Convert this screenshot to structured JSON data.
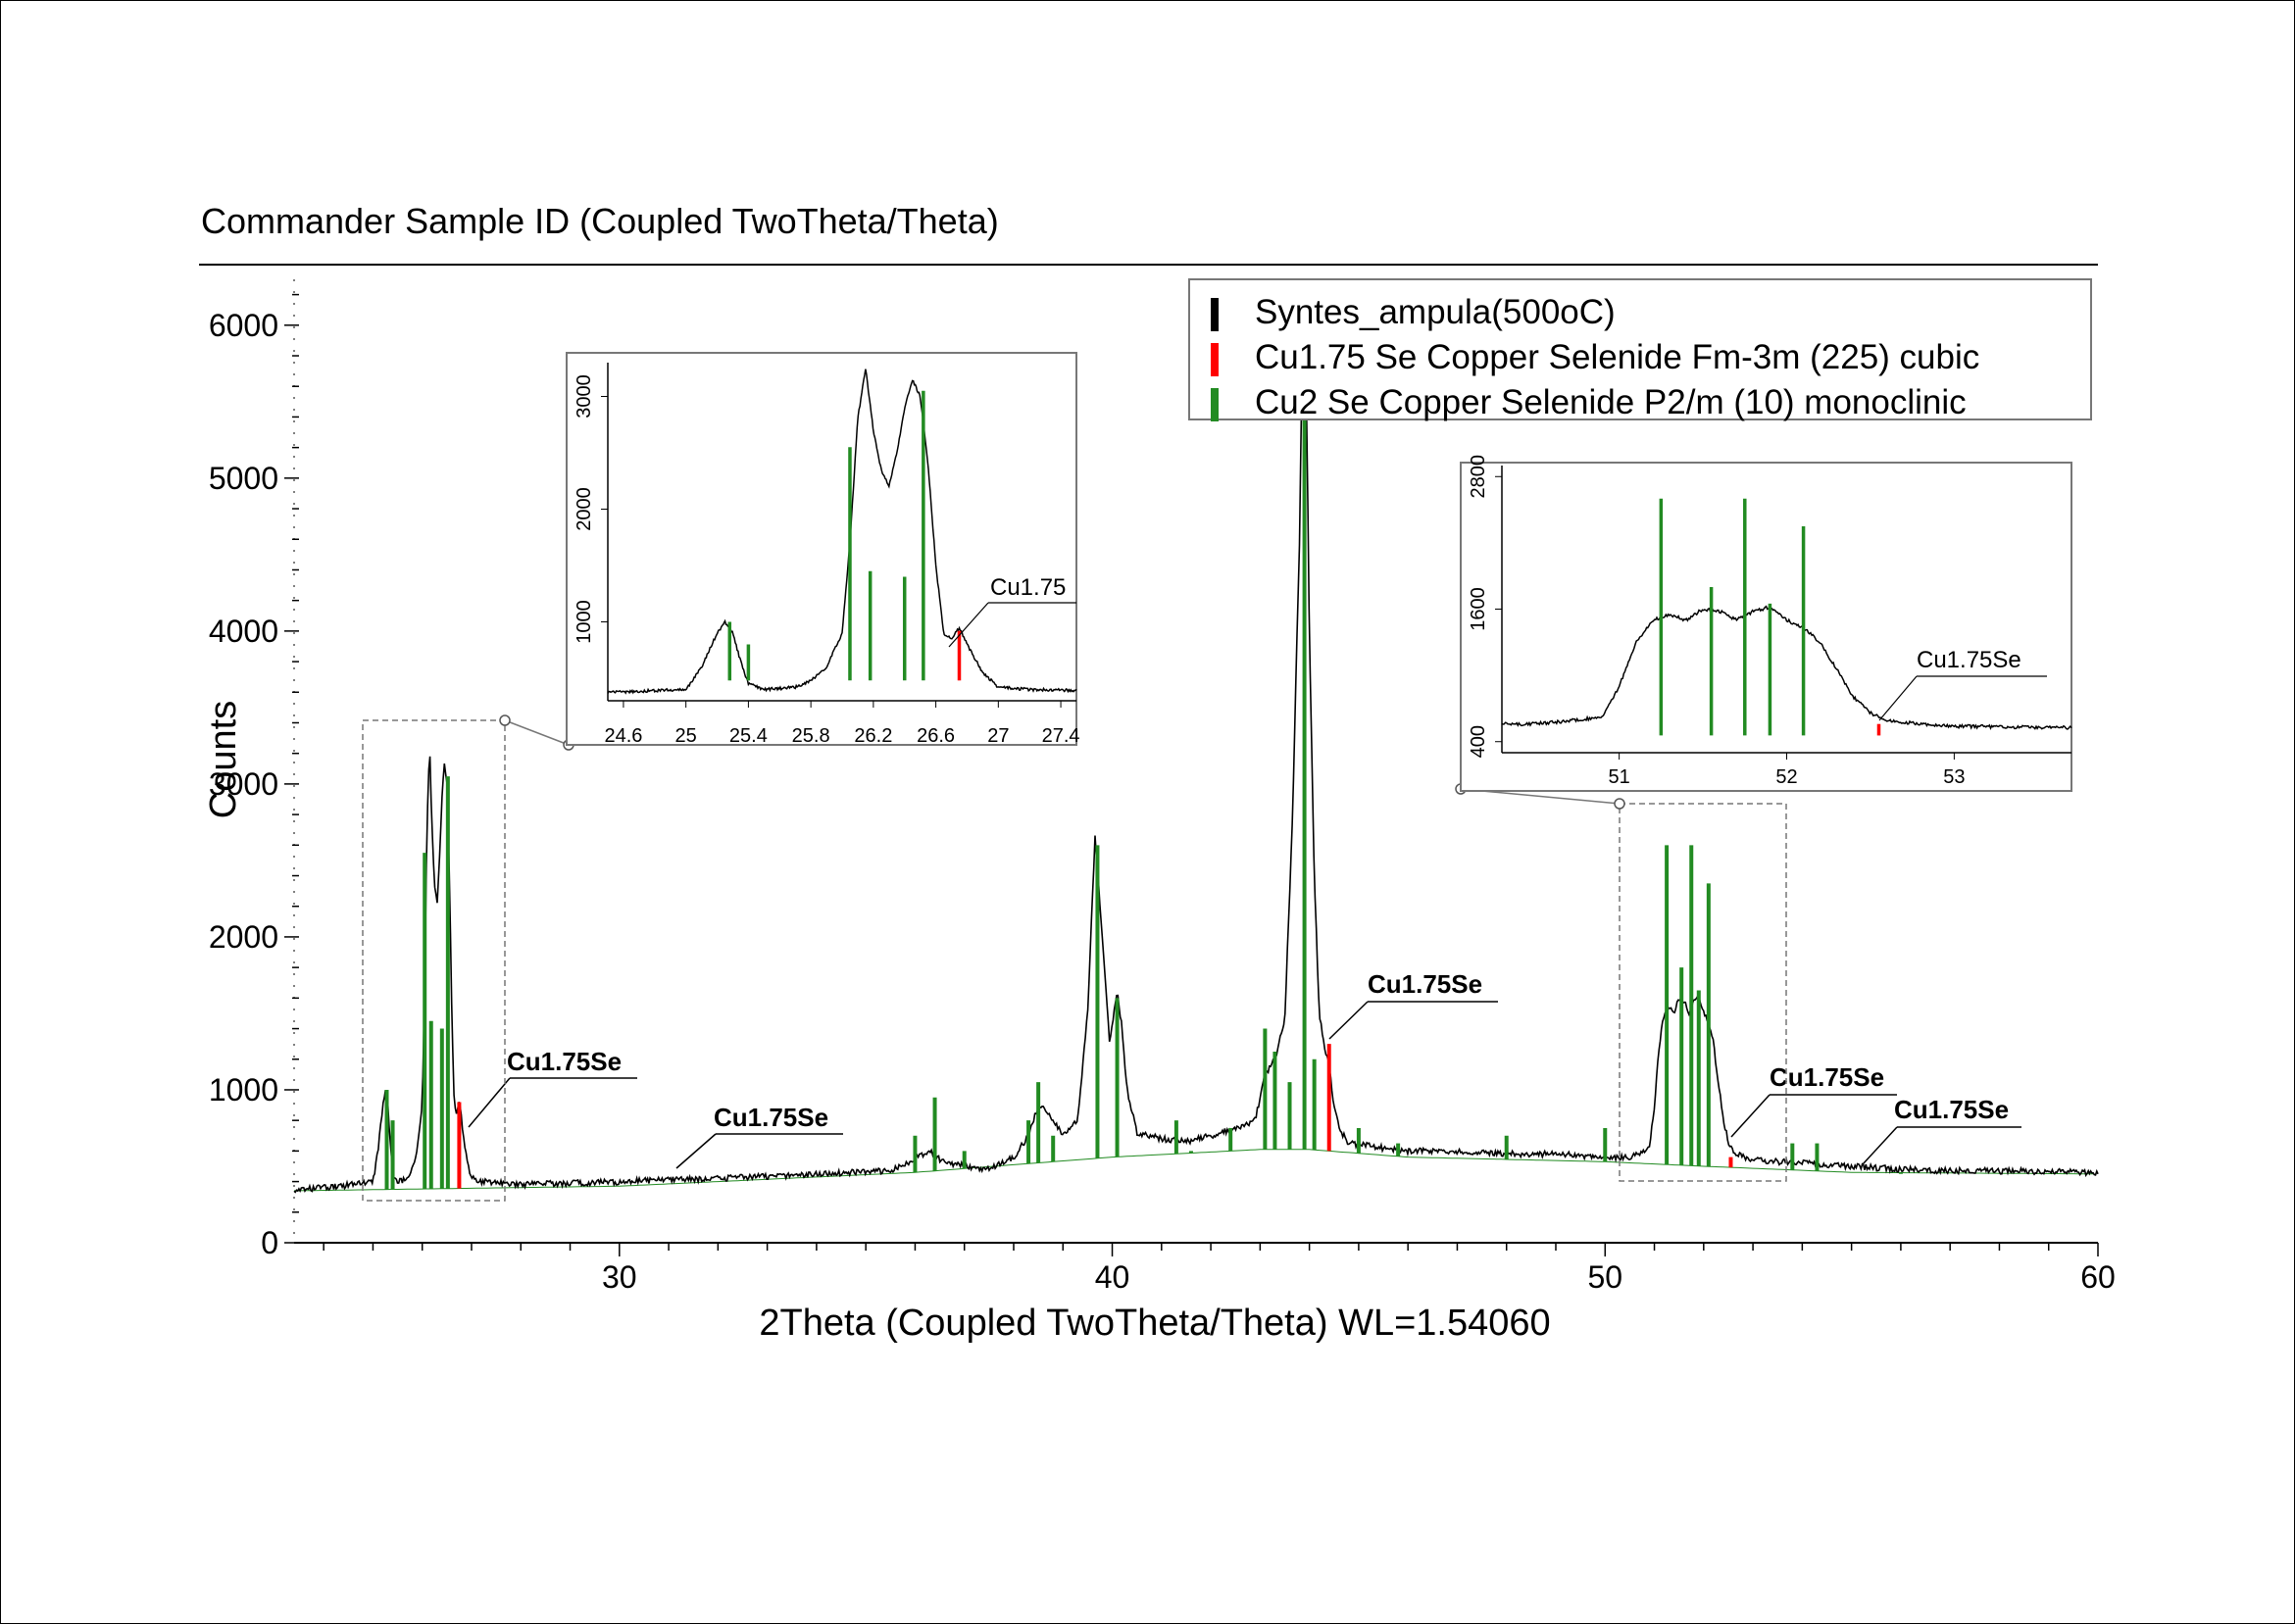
{
  "chart_data": {
    "type": "line",
    "title": "Commander Sample ID (Coupled TwoTheta/Theta)",
    "xlabel": "2Theta (Coupled TwoTheta/Theta) WL=1.54060",
    "ylabel": "Counts",
    "xlim": [
      23.4,
      60
    ],
    "ylim": [
      0,
      6300
    ],
    "x_ticks": [
      30,
      40,
      50,
      60
    ],
    "y_ticks": [
      0,
      1000,
      2000,
      3000,
      4000,
      5000,
      6000
    ],
    "grid": false,
    "legend_position": "top-right",
    "legend": [
      {
        "label": "Syntes_ampula(500oC)",
        "color": "#000000"
      },
      {
        "label": "Cu1.75 Se Copper Selenide Fm-3m (225) cubic",
        "color": "#ff0000"
      },
      {
        "label": "Cu2 Se Copper Selenide P2/m (10) monoclinic",
        "color": "#228b22"
      }
    ],
    "series": [
      {
        "name": "Syntes_ampula(500oC)",
        "color": "#000000",
        "x": [
          23.4,
          24.0,
          24.6,
          25.0,
          25.1,
          25.2,
          25.25,
          25.3,
          25.35,
          25.4,
          25.5,
          25.6,
          25.7,
          25.8,
          25.9,
          26.0,
          26.05,
          26.1,
          26.15,
          26.2,
          26.25,
          26.3,
          26.35,
          26.4,
          26.45,
          26.5,
          26.55,
          26.6,
          26.65,
          26.7,
          26.75,
          26.8,
          26.9,
          27.0,
          27.2,
          28.0,
          30.0,
          32.0,
          34.0,
          35.5,
          36.3,
          36.6,
          37.5,
          38.0,
          38.3,
          38.5,
          38.7,
          39.0,
          39.3,
          39.5,
          39.65,
          39.8,
          39.95,
          40.1,
          40.2,
          40.3,
          40.5,
          41.0,
          41.5,
          42.0,
          42.5,
          42.9,
          43.1,
          43.3,
          43.5,
          43.65,
          43.8,
          43.85,
          43.9,
          43.95,
          44.0,
          44.1,
          44.2,
          44.3,
          44.4,
          44.5,
          44.6,
          44.8,
          45.5,
          46.0,
          47.0,
          48.0,
          49.0,
          50.0,
          50.5,
          50.9,
          51.0,
          51.1,
          51.2,
          51.3,
          51.4,
          51.5,
          51.6,
          51.7,
          51.8,
          51.9,
          52.0,
          52.1,
          52.2,
          52.3,
          52.4,
          52.5,
          52.6,
          52.8,
          53.0,
          54.0,
          55.0,
          56.0,
          57.0,
          58.0,
          59.0,
          60.0
        ],
        "y": [
          350,
          360,
          380,
          400,
          600,
          900,
          1000,
          900,
          650,
          450,
          400,
          410,
          420,
          480,
          600,
          900,
          1700,
          2800,
          3250,
          2700,
          2350,
          2200,
          2500,
          2900,
          3150,
          3000,
          2400,
          1500,
          900,
          850,
          950,
          800,
          550,
          420,
          400,
          380,
          400,
          420,
          450,
          470,
          600,
          520,
          480,
          560,
          700,
          900,
          850,
          700,
          800,
          1500,
          2650,
          2000,
          1300,
          1650,
          1400,
          1000,
          720,
          680,
          660,
          700,
          750,
          800,
          1100,
          1200,
          1450,
          2700,
          4600,
          5700,
          5900,
          5300,
          4000,
          2400,
          1500,
          1300,
          1150,
          900,
          750,
          650,
          620,
          600,
          600,
          580,
          580,
          560,
          560,
          620,
          900,
          1300,
          1500,
          1550,
          1500,
          1600,
          1580,
          1500,
          1580,
          1620,
          1500,
          1430,
          1300,
          1050,
          800,
          660,
          590,
          560,
          540,
          520,
          500,
          480,
          470,
          470,
          465,
          460
        ]
      },
      {
        "name": "Cu1.75 Se Copper Selenide Fm-3m (225) cubic",
        "color": "#ff0000",
        "x": [
          26.75,
          44.4,
          52.55
        ],
        "y": [
          920,
          1300,
          560
        ]
      },
      {
        "name": "Cu2 Se Copper Selenide P2/m (10) monoclinic",
        "color": "#228b22",
        "x": [
          25.28,
          25.4,
          26.05,
          26.18,
          26.4,
          26.52,
          36.0,
          36.4,
          37.0,
          38.3,
          38.5,
          38.8,
          39.7,
          40.1,
          41.3,
          41.6,
          42.4,
          43.1,
          43.3,
          43.6,
          43.9,
          44.1,
          45.0,
          45.8,
          47.5,
          48.0,
          50.0,
          51.25,
          51.55,
          51.75,
          51.9,
          52.1,
          53.8,
          54.3,
          56.0
        ],
        "y": [
          1000,
          800,
          2550,
          1450,
          1400,
          3050,
          700,
          950,
          600,
          800,
          1050,
          700,
          2600,
          1600,
          800,
          600,
          750,
          1400,
          1250,
          1050,
          5900,
          1200,
          750,
          650,
          550,
          700,
          750,
          2600,
          1800,
          2600,
          1650,
          2350,
          650,
          650,
          450
        ]
      }
    ],
    "annotations": [
      "Cu1.75Se",
      "Cu1.75Se",
      "Cu1.75Se",
      "Cu1.75Se",
      "Cu1.75Se"
    ],
    "insets": [
      {
        "xlim": [
          24.5,
          27.5
        ],
        "ylim": [
          300,
          3300
        ],
        "x_ticks": [
          "24.6",
          "25",
          "25.4",
          "25.8",
          "26.2",
          "26.6",
          "27",
          "27.4"
        ],
        "y_ticks": [
          "1000",
          "2000",
          "3000"
        ],
        "annotation": "Cu1.75"
      },
      {
        "xlim": [
          50.3,
          53.7
        ],
        "ylim": [
          300,
          2900
        ],
        "x_ticks": [
          "51",
          "52",
          "53"
        ],
        "y_ticks": [
          "400",
          "1600",
          "2800"
        ],
        "annotation": "Cu1.75Se"
      }
    ]
  }
}
